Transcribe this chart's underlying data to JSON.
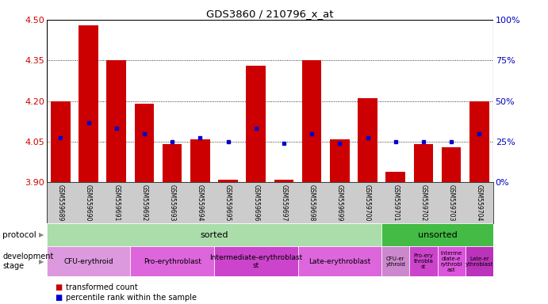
{
  "title": "GDS3860 / 210796_x_at",
  "samples": [
    "GSM559689",
    "GSM559690",
    "GSM559691",
    "GSM559692",
    "GSM559693",
    "GSM559694",
    "GSM559695",
    "GSM559696",
    "GSM559697",
    "GSM559698",
    "GSM559699",
    "GSM559700",
    "GSM559701",
    "GSM559702",
    "GSM559703",
    "GSM559704"
  ],
  "bar_tops": [
    4.2,
    4.48,
    4.35,
    4.19,
    4.04,
    4.06,
    3.91,
    4.33,
    3.91,
    4.35,
    4.06,
    4.21,
    3.94,
    4.04,
    4.03,
    4.2
  ],
  "bar_bottoms": [
    3.9,
    3.9,
    3.9,
    3.9,
    3.9,
    3.9,
    3.9,
    3.9,
    3.9,
    3.9,
    3.9,
    3.9,
    3.9,
    3.9,
    3.9,
    3.9
  ],
  "blue_marks": [
    4.065,
    4.12,
    4.1,
    4.08,
    4.05,
    4.065,
    4.05,
    4.1,
    4.045,
    4.08,
    4.045,
    4.065,
    4.05,
    4.05,
    4.05,
    4.08
  ],
  "ylim": [
    3.9,
    4.5
  ],
  "yticks_left": [
    3.9,
    4.05,
    4.2,
    4.35,
    4.5
  ],
  "yticks_right": [
    0,
    25,
    50,
    75,
    100
  ],
  "right_tick_labels": [
    "0%",
    "25%",
    "50%",
    "75%",
    "100%"
  ],
  "bar_color": "#cc0000",
  "blue_color": "#0000cc",
  "grid_color": "#000000",
  "protocol_sorted_color": "#aaddaa",
  "protocol_unsorted_color": "#44bb44",
  "dev_stage_light": "#dd88dd",
  "dev_stage_dark": "#cc44cc",
  "xlabel_color": "#cc0000",
  "ylabel_right_color": "#0000bb",
  "xlabels_bg": "#cccccc",
  "sorted_split": 11.5,
  "n_samples": 16,
  "stage_defs_sorted": [
    {
      "label": "CFU-erythroid",
      "xstart": -0.5,
      "xend": 2.5,
      "color": "#dd99dd"
    },
    {
      "label": "Pro-erythroblast",
      "xstart": 2.5,
      "xend": 5.5,
      "color": "#dd66dd"
    },
    {
      "label": "Intermediate-erythroblast\nst",
      "xstart": 5.5,
      "xend": 8.5,
      "color": "#cc44cc"
    },
    {
      "label": "Late-erythroblast",
      "xstart": 8.5,
      "xend": 11.5,
      "color": "#dd66dd"
    }
  ],
  "stage_defs_unsorted": [
    {
      "label": "CFU-er\nythroid",
      "xstart": 11.5,
      "xend": 12.5,
      "color": "#cc88cc"
    },
    {
      "label": "Pro-ery\nthrobla\nst",
      "xstart": 12.5,
      "xend": 13.5,
      "color": "#cc44cc"
    },
    {
      "label": "Interme\ndiate-e\nrythrobl\nast",
      "xstart": 13.5,
      "xend": 14.5,
      "color": "#dd55dd"
    },
    {
      "label": "Late-er\nythroblast",
      "xstart": 14.5,
      "xend": 15.5,
      "color": "#bb33bb"
    }
  ]
}
